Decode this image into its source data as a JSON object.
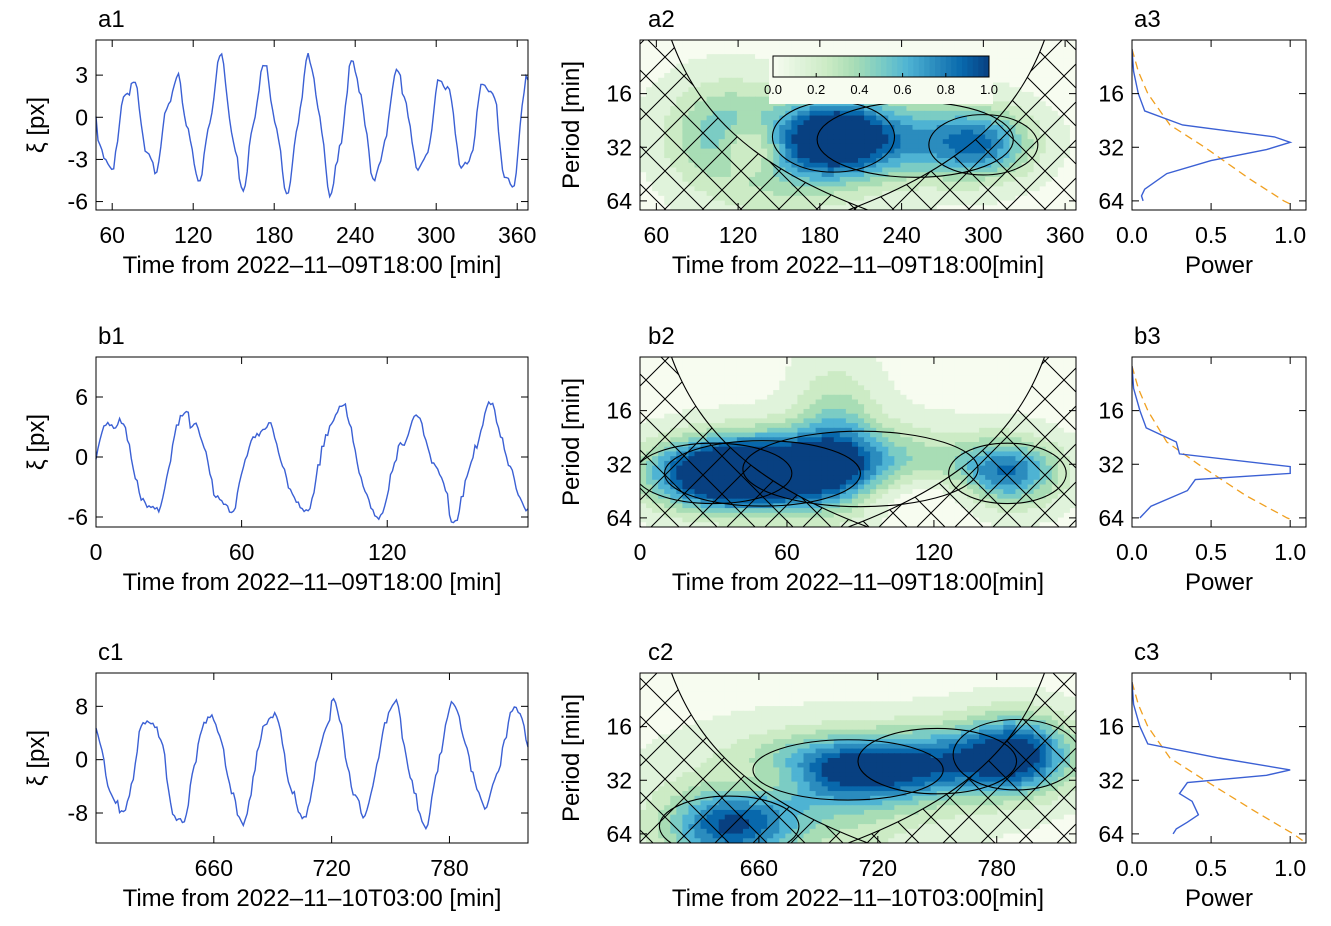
{
  "colors": {
    "series": "#3b60d4",
    "significance": "#f0a020",
    "contour": "#000000",
    "hatch": "#000000",
    "colormap": [
      "#f7fcf0",
      "#e0f3db",
      "#ccebc5",
      "#a8ddb5",
      "#7bccc4",
      "#4eb3d3",
      "#2b8cbe",
      "#0868ac",
      "#084081"
    ]
  },
  "colorbar": {
    "ticks": [
      "0.0",
      "0.2",
      "0.4",
      "0.6",
      "0.8",
      "1.0"
    ],
    "range": [
      0,
      1
    ]
  },
  "chart_data": [
    {
      "id": "a1",
      "type": "line",
      "title": "a1",
      "xlabel": "Time from 2022–11–09T18:00 [min]",
      "ylabel": "ξ [px]",
      "xlim": [
        48,
        368
      ],
      "ylim": [
        -6.6,
        5.5
      ],
      "xticks": [
        60,
        120,
        180,
        240,
        300,
        360
      ],
      "yticks": [
        3,
        0,
        -3,
        -6
      ],
      "oscillation": {
        "period": 33,
        "amplitude": 3.6,
        "offset": -0.5,
        "noise": 0.8,
        "seed": 11
      }
    },
    {
      "id": "a2",
      "type": "heatmap",
      "title": "a2",
      "xlabel": "Time from 2022–11–09T18:00[min]",
      "ylabel": "Period [min]",
      "xlim": [
        48,
        368
      ],
      "ylim": [
        8,
        72
      ],
      "yscale": "log",
      "xticks": [
        60,
        120,
        180,
        240,
        300,
        360
      ],
      "yticks": [
        16,
        32,
        64
      ],
      "blobs": [
        {
          "t": 190,
          "p": 28,
          "st": 28,
          "sp": 0.14,
          "a": 1.0
        },
        {
          "t": 250,
          "p": 29,
          "st": 45,
          "sp": 0.15,
          "a": 0.55
        },
        {
          "t": 300,
          "p": 31,
          "st": 25,
          "sp": 0.12,
          "a": 0.55
        },
        {
          "t": 110,
          "p": 26,
          "st": 30,
          "sp": 0.18,
          "a": 0.45
        },
        {
          "t": 150,
          "p": 40,
          "st": 40,
          "sp": 0.2,
          "a": 0.3
        }
      ],
      "holes": [
        {
          "t": 130,
          "p": 32,
          "st": 16,
          "sp": 0.1,
          "a": 0.5
        }
      ],
      "coi_factor": 1.1,
      "sig_level": 0.33
    },
    {
      "id": "a3",
      "type": "line",
      "title": "a3",
      "xlabel": "Power",
      "ylabel": "",
      "xlim": [
        0,
        1.1
      ],
      "ylim": [
        8,
        72
      ],
      "yscale": "log",
      "xticks": [
        "0.0",
        "0.5",
        "1.0"
      ],
      "yticks": [
        16,
        32,
        64
      ],
      "power": [
        [
          9,
          0.0
        ],
        [
          12,
          0.01
        ],
        [
          16,
          0.04
        ],
        [
          20,
          0.08
        ],
        [
          24,
          0.32
        ],
        [
          28,
          0.9
        ],
        [
          30,
          1.0
        ],
        [
          33,
          0.85
        ],
        [
          38,
          0.5
        ],
        [
          45,
          0.22
        ],
        [
          55,
          0.08
        ],
        [
          60,
          0.06
        ],
        [
          64,
          0.07
        ]
      ],
      "significance": [
        [
          9,
          0.0
        ],
        [
          12,
          0.04
        ],
        [
          16,
          0.1
        ],
        [
          24,
          0.24
        ],
        [
          32,
          0.46
        ],
        [
          48,
          0.74
        ],
        [
          64,
          0.96
        ],
        [
          68,
          1.02
        ]
      ]
    },
    {
      "id": "b1",
      "type": "line",
      "title": "b1",
      "xlabel": "Time from 2022–11–09T18:00 [min]",
      "ylabel": "ξ [px]",
      "xlim": [
        0,
        178
      ],
      "ylim": [
        -7,
        10
      ],
      "xticks": [
        0,
        60,
        120
      ],
      "yticks": [
        6,
        0,
        -6
      ],
      "oscillation": {
        "period": 31,
        "amplitude": 4.8,
        "offset": -0.5,
        "noise": 0.8,
        "seed": 23
      }
    },
    {
      "id": "b2",
      "type": "heatmap",
      "title": "b2",
      "xlabel": "Time from 2022–11–09T18:00[min]",
      "ylabel": "Period [min]",
      "xlim": [
        0,
        178
      ],
      "ylim": [
        8,
        72
      ],
      "yscale": "log",
      "xticks": [
        0,
        60,
        120
      ],
      "yticks": [
        16,
        32,
        64
      ],
      "blobs": [
        {
          "t": 50,
          "p": 36,
          "st": 25,
          "sp": 0.13,
          "a": 1.0
        },
        {
          "t": 30,
          "p": 36,
          "st": 20,
          "sp": 0.12,
          "a": 0.7
        },
        {
          "t": 90,
          "p": 34,
          "st": 30,
          "sp": 0.15,
          "a": 0.55
        },
        {
          "t": 150,
          "p": 36,
          "st": 15,
          "sp": 0.12,
          "a": 0.8
        },
        {
          "t": 80,
          "p": 22,
          "st": 12,
          "sp": 0.25,
          "a": 0.4
        }
      ],
      "holes": [
        {
          "t": 110,
          "p": 46,
          "st": 25,
          "sp": 0.1,
          "a": 0.35
        }
      ],
      "coi_factor": 1.1,
      "sig_level": 0.3
    },
    {
      "id": "b3",
      "type": "line",
      "title": "b3",
      "xlabel": "Power",
      "ylabel": "",
      "xlim": [
        0,
        1.1
      ],
      "ylim": [
        8,
        72
      ],
      "yscale": "log",
      "xticks": [
        "0.0",
        "0.5",
        "1.0"
      ],
      "yticks": [
        16,
        32,
        64
      ],
      "power": [
        [
          9,
          0.0
        ],
        [
          12,
          0.01
        ],
        [
          16,
          0.05
        ],
        [
          20,
          0.09
        ],
        [
          24,
          0.28
        ],
        [
          28,
          0.3
        ],
        [
          33,
          1.0
        ],
        [
          36,
          1.0
        ],
        [
          39,
          0.4
        ],
        [
          45,
          0.35
        ],
        [
          55,
          0.12
        ],
        [
          64,
          0.05
        ]
      ],
      "significance": [
        [
          9,
          0.0
        ],
        [
          12,
          0.04
        ],
        [
          16,
          0.1
        ],
        [
          24,
          0.22
        ],
        [
          32,
          0.42
        ],
        [
          48,
          0.72
        ],
        [
          64,
          0.98
        ],
        [
          66,
          1.02
        ]
      ]
    },
    {
      "id": "c1",
      "type": "line",
      "title": "c1",
      "xlabel": "Time from 2022–11–10T03:00 [min]",
      "ylabel": "ξ [px]",
      "xlim": [
        600,
        820
      ],
      "ylim": [
        -12.5,
        13
      ],
      "xticks": [
        660,
        720,
        780
      ],
      "yticks": [
        8,
        0,
        -8
      ],
      "oscillation": {
        "period": 31,
        "amplitude": 7.5,
        "offset": -0.5,
        "noise": 1.4,
        "seed": 37
      }
    },
    {
      "id": "c2",
      "type": "heatmap",
      "title": "c2",
      "xlabel": "Time from 2022–11–10T03:00[min]",
      "ylabel": "Period [min]",
      "xlim": [
        600,
        820
      ],
      "ylim": [
        8,
        72
      ],
      "yscale": "log",
      "xticks": [
        660,
        720,
        780
      ],
      "yticks": [
        16,
        32,
        64
      ],
      "blobs": [
        {
          "t": 705,
          "p": 28,
          "st": 30,
          "sp": 0.12,
          "a": 0.85
        },
        {
          "t": 790,
          "p": 23,
          "st": 20,
          "sp": 0.14,
          "a": 1.0
        },
        {
          "t": 750,
          "p": 25,
          "st": 25,
          "sp": 0.13,
          "a": 0.5
        },
        {
          "t": 645,
          "p": 58,
          "st": 22,
          "sp": 0.12,
          "a": 0.75
        },
        {
          "t": 680,
          "p": 45,
          "st": 50,
          "sp": 0.25,
          "a": 0.3
        }
      ],
      "holes": [
        {
          "t": 670,
          "p": 32,
          "st": 18,
          "sp": 0.08,
          "a": 0.3
        }
      ],
      "coi_factor": 1.1,
      "sig_level": 0.38
    },
    {
      "id": "c3",
      "type": "line",
      "title": "c3",
      "xlabel": "Power",
      "ylabel": "",
      "xlim": [
        0,
        1.1
      ],
      "ylim": [
        8,
        72
      ],
      "yscale": "log",
      "xticks": [
        "0.0",
        "0.5",
        "1.0"
      ],
      "yticks": [
        16,
        32,
        64
      ],
      "power": [
        [
          9,
          0.0
        ],
        [
          12,
          0.01
        ],
        [
          16,
          0.05
        ],
        [
          20,
          0.1
        ],
        [
          24,
          0.55
        ],
        [
          28,
          1.0
        ],
        [
          30,
          0.85
        ],
        [
          33,
          0.35
        ],
        [
          38,
          0.3
        ],
        [
          42,
          0.38
        ],
        [
          50,
          0.42
        ],
        [
          55,
          0.35
        ],
        [
          60,
          0.28
        ],
        [
          64,
          0.26
        ]
      ],
      "significance": [
        [
          9,
          0.0
        ],
        [
          12,
          0.04
        ],
        [
          16,
          0.1
        ],
        [
          24,
          0.24
        ],
        [
          32,
          0.46
        ],
        [
          48,
          0.78
        ],
        [
          64,
          1.02
        ],
        [
          72,
          1.1
        ]
      ]
    }
  ]
}
